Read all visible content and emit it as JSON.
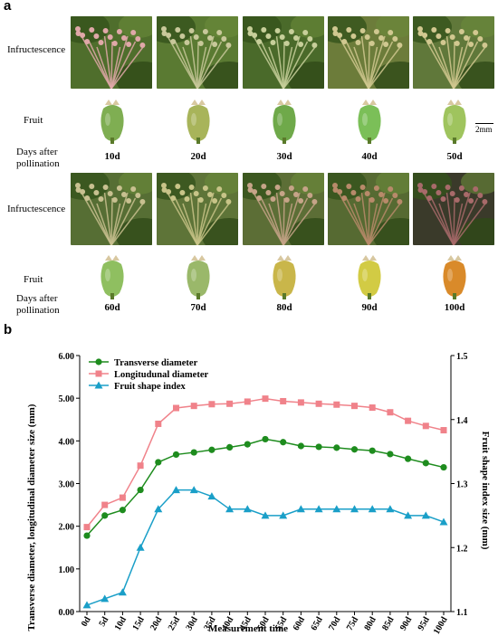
{
  "panel_a": {
    "letter": "a",
    "labels": {
      "infructescence": "Infructescence",
      "fruit": "Fruit",
      "days_line1": "Days after",
      "days_line2": "pollination"
    },
    "scale_bar": "2mm",
    "row1_days": [
      "10d",
      "20d",
      "30d",
      "40d",
      "50d"
    ],
    "row2_days": [
      "60d",
      "70d",
      "80d",
      "90d",
      "100d"
    ],
    "fruit_colors": [
      "#7fae52",
      "#a8b45a",
      "#6fa94a",
      "#7bbf58",
      "#9fc45e",
      "#8fbf60",
      "#9ab86a",
      "#c9b64a",
      "#d2cb44",
      "#d98a2a"
    ],
    "infructescence_tones": [
      {
        "bg": "#4f6e2c",
        "fg": "#e0a8a8"
      },
      {
        "bg": "#5a7a32",
        "fg": "#c8c89a"
      },
      {
        "bg": "#4a6a2a",
        "fg": "#c7cf9a"
      },
      {
        "bg": "#6c7c3a",
        "fg": "#d0c890"
      },
      {
        "bg": "#60783a",
        "fg": "#d2c890"
      },
      {
        "bg": "#566e34",
        "fg": "#c8c090"
      },
      {
        "bg": "#5e7438",
        "fg": "#c8c488"
      },
      {
        "bg": "#5c6e36",
        "fg": "#c6a488"
      },
      {
        "bg": "#566a32",
        "fg": "#b88a6a"
      },
      {
        "bg": "#3a3a2a",
        "fg": "#a86a6a"
      }
    ]
  },
  "panel_b": {
    "letter": "b"
  },
  "chart_data": {
    "type": "line",
    "xlabel": "Measurement time",
    "ylabel": "Transverse diameter, longitudinal diameter size (mm)",
    "y2label": "Fruit shape index size (mm)",
    "categories": [
      "0d",
      "5d",
      "10d",
      "15d",
      "20d",
      "25d",
      "30d",
      "35d",
      "40d",
      "45d",
      "50d",
      "55d",
      "60d",
      "65d",
      "70d",
      "75d",
      "80d",
      "85d",
      "90d",
      "95d",
      "100d"
    ],
    "ylim": [
      0,
      6
    ],
    "yticks": [
      "0.00",
      "1.00",
      "2.00",
      "3.00",
      "4.00",
      "5.00",
      "6.00"
    ],
    "y2lim": [
      1.1,
      1.5
    ],
    "y2ticks": [
      "1.1",
      "1.2",
      "1.3",
      "1.4",
      "1.5"
    ],
    "legend_position": "top-left",
    "series": [
      {
        "name": "Transverse diameter",
        "axis": "left",
        "color": "#1e8c1e",
        "marker": "circle",
        "values": [
          1.78,
          2.25,
          2.38,
          2.85,
          3.5,
          3.68,
          3.73,
          3.79,
          3.85,
          3.92,
          4.04,
          3.97,
          3.88,
          3.86,
          3.84,
          3.8,
          3.77,
          3.69,
          3.58,
          3.48,
          3.38
        ]
      },
      {
        "name": "Longitudunal diameter",
        "axis": "left",
        "color": "#f0828a",
        "marker": "square",
        "values": [
          1.98,
          2.5,
          2.67,
          3.42,
          4.4,
          4.77,
          4.82,
          4.86,
          4.87,
          4.92,
          4.99,
          4.93,
          4.9,
          4.87,
          4.85,
          4.82,
          4.78,
          4.67,
          4.47,
          4.35,
          4.25
        ]
      },
      {
        "name": "Fruit shape index",
        "axis": "right",
        "color": "#1a9fc8",
        "marker": "triangle",
        "values": [
          1.11,
          1.12,
          1.13,
          1.2,
          1.26,
          1.29,
          1.29,
          1.28,
          1.26,
          1.26,
          1.25,
          1.25,
          1.26,
          1.26,
          1.26,
          1.26,
          1.26,
          1.26,
          1.25,
          1.25,
          1.24
        ]
      }
    ]
  }
}
